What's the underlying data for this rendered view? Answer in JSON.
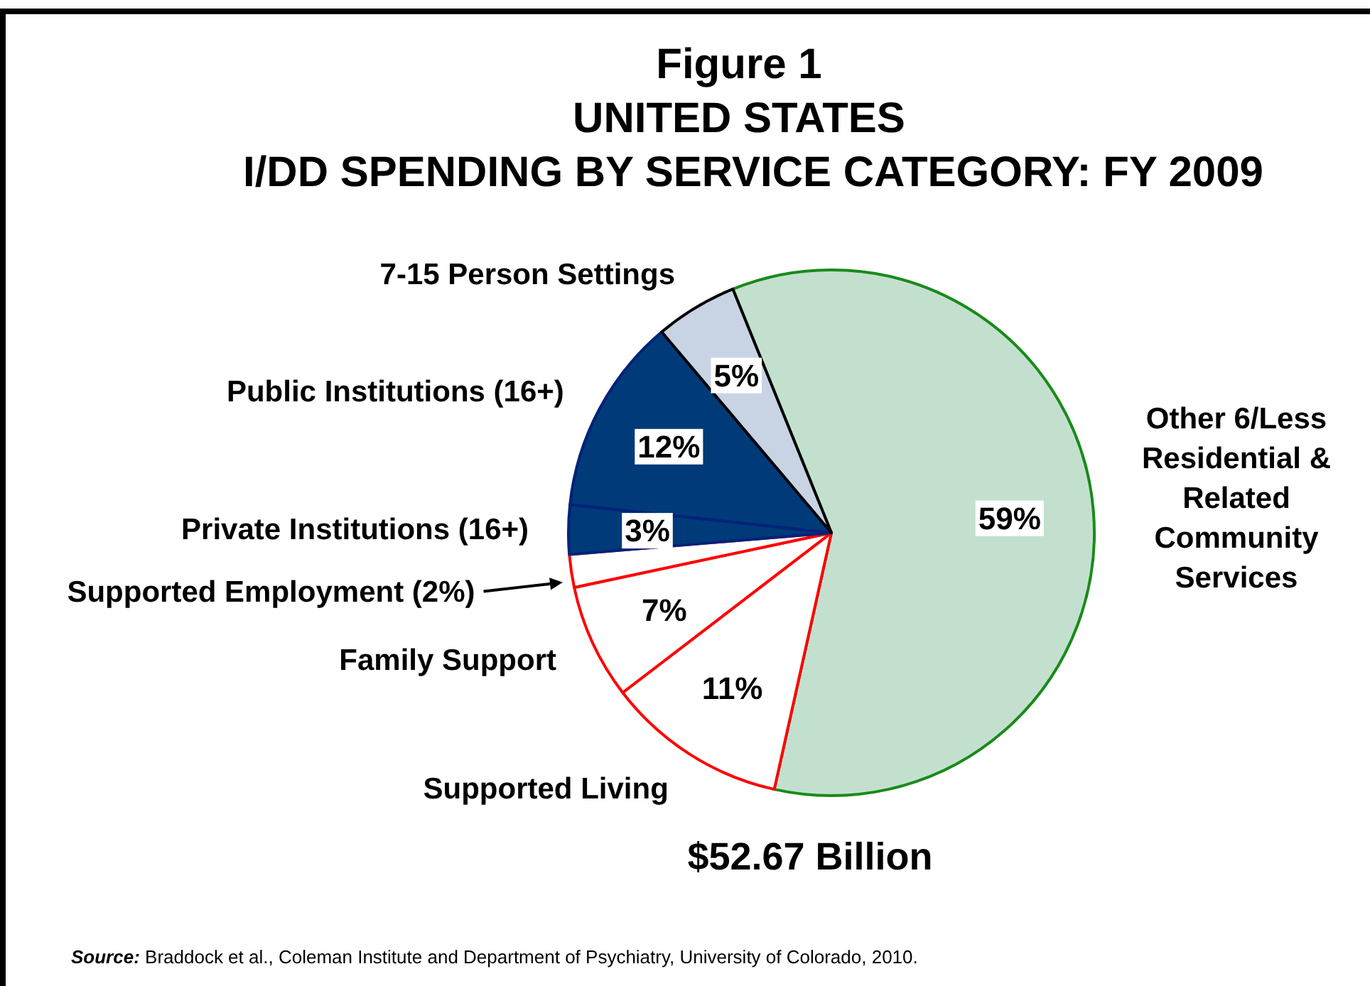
{
  "chart_data": {
    "type": "pie",
    "title": "Figure 1\nUNITED STATES\nI/DD SPENDING BY SERVICE CATEGORY: FY 2009",
    "categories": [
      "Other 6/Less Residential & Related Community Services",
      "Supported Living",
      "Family Support",
      "Supported Employment (2%)",
      "Private Institutions (16+)",
      "Public Institutions (16+)",
      "7-15 Person Settings"
    ],
    "values": [
      59,
      11,
      7,
      2,
      3,
      12,
      5
    ],
    "colors": [
      "#c3e0cf",
      "#ffffff",
      "#ffffff",
      "#ffffff",
      "#003a78",
      "#003a78",
      "#c8d4e4"
    ],
    "value_labels": [
      "59%",
      "11%",
      "7%",
      null,
      "3%",
      "12%",
      "5%"
    ],
    "annotations": [
      "$52.67 Billion",
      "Source: Braddock et al., Coleman Institute and Department of Psychiatry, University of Colorado, 2010."
    ]
  }
}
